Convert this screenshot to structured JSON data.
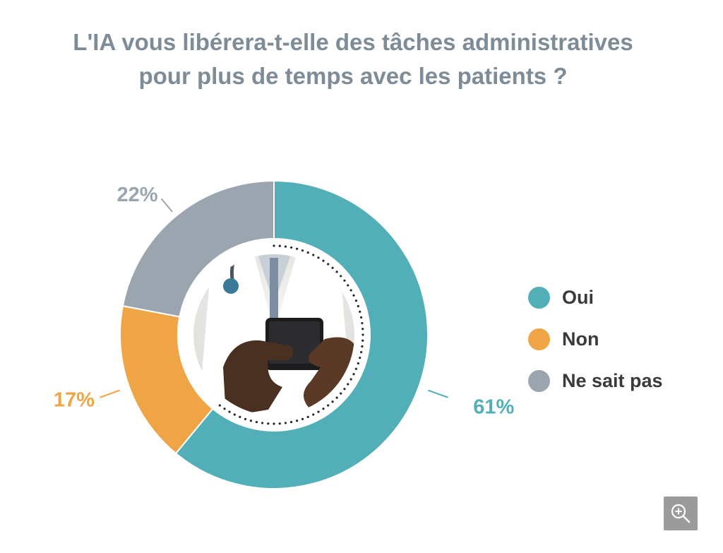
{
  "title": {
    "line1": "L'IA vous libérera-t-elle des tâches administratives",
    "line2": "pour plus de temps avec les patients ?"
  },
  "chart_data": {
    "type": "pie",
    "variant": "donut",
    "title": "L'IA vous libérera-t-elle des tâches administratives pour plus de temps avec les patients ?",
    "categories": [
      "Oui",
      "Non",
      "Ne sait pas"
    ],
    "values": [
      61,
      17,
      22
    ],
    "value_labels": [
      "61%",
      "17%",
      "22%"
    ],
    "colors": [
      "#52afb7",
      "#efa545",
      "#9aa5b0"
    ],
    "legend_position": "right"
  },
  "legend": {
    "items": [
      {
        "label": "Oui",
        "color": "#52afb7"
      },
      {
        "label": "Non",
        "color": "#efa545"
      },
      {
        "label": "Ne sait pas",
        "color": "#9aa5b0"
      }
    ]
  },
  "controls": {
    "zoom_icon": "zoom-in-icon"
  }
}
